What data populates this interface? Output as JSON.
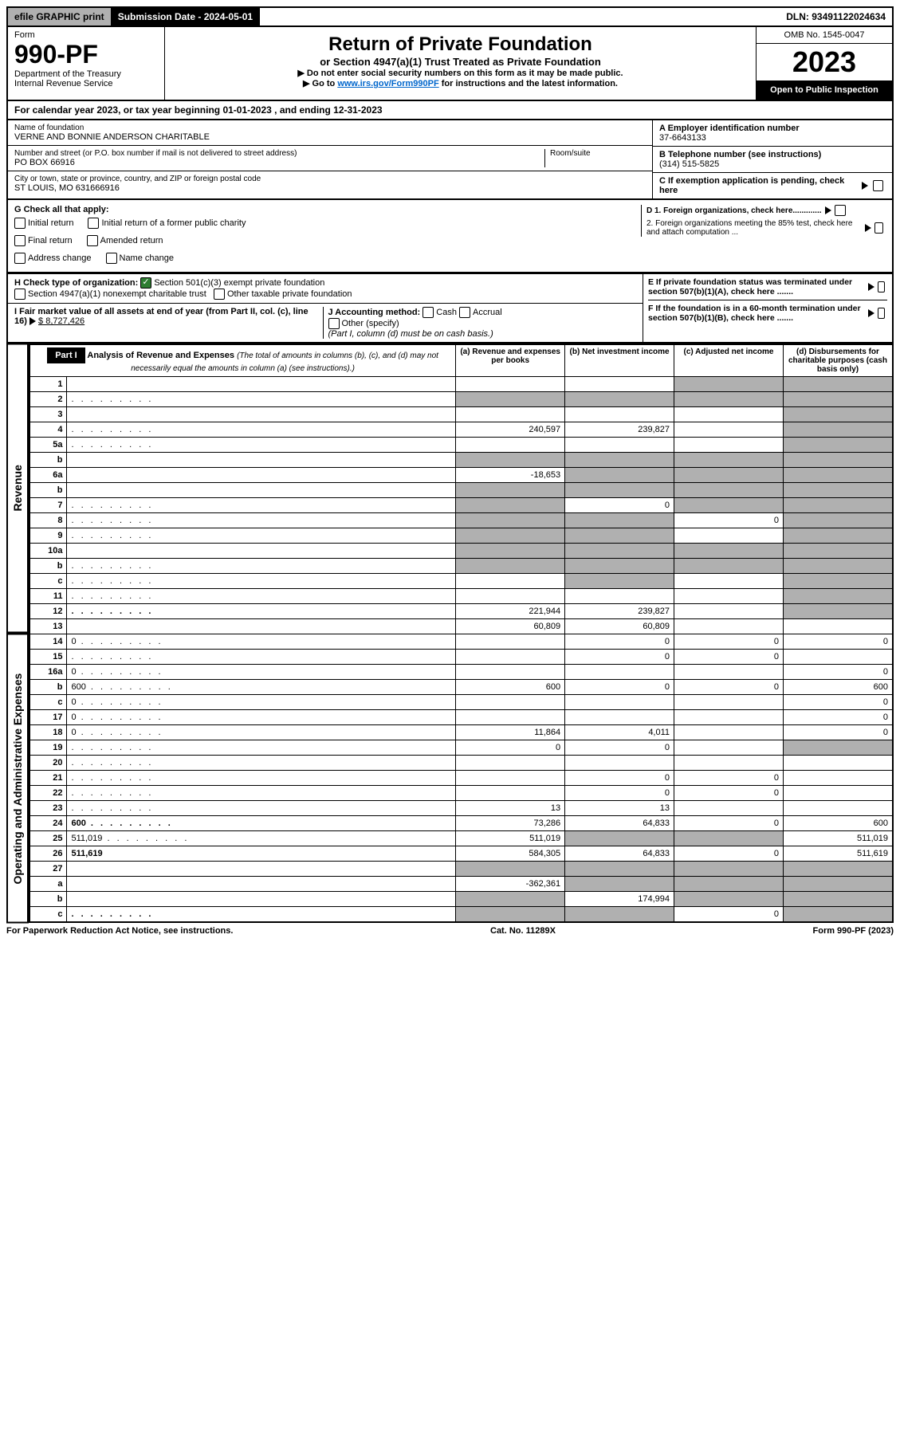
{
  "topbar": {
    "efile": "efile GRAPHIC print",
    "submission": "Submission Date - 2024-05-01",
    "dln": "DLN: 93491122024634"
  },
  "header": {
    "form_label": "Form",
    "form_number": "990-PF",
    "dept": "Department of the Treasury",
    "irs": "Internal Revenue Service",
    "title": "Return of Private Foundation",
    "subtitle": "or Section 4947(a)(1) Trust Treated as Private Foundation",
    "note1": "▶ Do not enter social security numbers on this form as it may be made public.",
    "note2_pre": "▶ Go to ",
    "note2_link": "www.irs.gov/Form990PF",
    "note2_post": " for instructions and the latest information.",
    "omb": "OMB No. 1545-0047",
    "year": "2023",
    "open": "Open to Public Inspection"
  },
  "calendar": "For calendar year 2023, or tax year beginning 01-01-2023           , and ending 12-31-2023",
  "foundation": {
    "name_label": "Name of foundation",
    "name": "VERNE AND BONNIE ANDERSON CHARITABLE",
    "addr_label": "Number and street (or P.O. box number if mail is not delivered to street address)",
    "room_label": "Room/suite",
    "addr": "PO BOX 66916",
    "city_label": "City or town, state or province, country, and ZIP or foreign postal code",
    "city": "ST LOUIS, MO  631666916",
    "ein_label": "A Employer identification number",
    "ein": "37-6643133",
    "phone_label": "B Telephone number (see instructions)",
    "phone": "(314) 515-5825",
    "pending": "C If exemption application is pending, check here"
  },
  "checks": {
    "g_label": "G Check all that apply:",
    "initial": "Initial return",
    "initial_former": "Initial return of a former public charity",
    "final": "Final return",
    "amended": "Amended return",
    "addr_change": "Address change",
    "name_change": "Name change",
    "h_label": "H Check type of organization:",
    "h_501c3": "Section 501(c)(3) exempt private foundation",
    "h_4947": "Section 4947(a)(1) nonexempt charitable trust",
    "h_other": "Other taxable private foundation",
    "i_label": "I Fair market value of all assets at end of year (from Part II, col. (c), line 16)",
    "i_value": "$ 8,727,426",
    "j_label": "J Accounting method:",
    "j_cash": "Cash",
    "j_accrual": "Accrual",
    "j_other": "Other (specify)",
    "j_note": "(Part I, column (d) must be on cash basis.)",
    "d1": "D 1. Foreign organizations, check here.............",
    "d2": "2. Foreign organizations meeting the 85% test, check here and attach computation ...",
    "e": "E If private foundation status was terminated under section 507(b)(1)(A), check here .......",
    "f": "F If the foundation is in a 60-month termination under section 507(b)(1)(B), check here ......."
  },
  "part1": {
    "label": "Part I",
    "title": "Analysis of Revenue and Expenses",
    "title_note": "(The total of amounts in columns (b), (c), and (d) may not necessarily equal the amounts in column (a) (see instructions).)",
    "col_a": "(a) Revenue and expenses per books",
    "col_b": "(b) Net investment income",
    "col_c": "(c) Adjusted net income",
    "col_d": "(d) Disbursements for charitable purposes (cash basis only)"
  },
  "side_labels": {
    "revenue": "Revenue",
    "expenses": "Operating and Administrative Expenses"
  },
  "rows": [
    {
      "n": "1",
      "d": "",
      "a": "",
      "b": "",
      "c": "",
      "shade_c": true,
      "shade_d": true
    },
    {
      "n": "2",
      "d": "",
      "dots": true,
      "a": "",
      "b": "",
      "c": "",
      "shade_a": true,
      "shade_b": true,
      "shade_c": true,
      "shade_d": true
    },
    {
      "n": "3",
      "d": "",
      "a": "",
      "b": "",
      "c": "",
      "shade_d": true
    },
    {
      "n": "4",
      "d": "",
      "dots": true,
      "a": "240,597",
      "b": "239,827",
      "c": "",
      "shade_d": true
    },
    {
      "n": "5a",
      "d": "",
      "dots": true,
      "a": "",
      "b": "",
      "c": "",
      "shade_d": true
    },
    {
      "n": "b",
      "d": "",
      "a": "",
      "b": "",
      "c": "",
      "shade_a": true,
      "shade_b": true,
      "shade_c": true,
      "shade_d": true
    },
    {
      "n": "6a",
      "d": "",
      "a": "-18,653",
      "b": "",
      "c": "",
      "shade_b": true,
      "shade_c": true,
      "shade_d": true
    },
    {
      "n": "b",
      "d": "",
      "a": "",
      "b": "",
      "c": "",
      "shade_a": true,
      "shade_b": true,
      "shade_c": true,
      "shade_d": true
    },
    {
      "n": "7",
      "d": "",
      "dots": true,
      "a": "",
      "b": "0",
      "c": "",
      "shade_a": true,
      "shade_c": true,
      "shade_d": true
    },
    {
      "n": "8",
      "d": "",
      "dots": true,
      "a": "",
      "b": "",
      "c": "0",
      "shade_a": true,
      "shade_b": true,
      "shade_d": true
    },
    {
      "n": "9",
      "d": "",
      "dots": true,
      "a": "",
      "b": "",
      "c": "",
      "shade_a": true,
      "shade_b": true,
      "shade_d": true
    },
    {
      "n": "10a",
      "d": "",
      "a": "",
      "b": "",
      "c": "",
      "shade_a": true,
      "shade_b": true,
      "shade_c": true,
      "shade_d": true
    },
    {
      "n": "b",
      "d": "",
      "dots": true,
      "a": "",
      "b": "",
      "c": "",
      "shade_a": true,
      "shade_b": true,
      "shade_c": true,
      "shade_d": true
    },
    {
      "n": "c",
      "d": "",
      "dots": true,
      "a": "",
      "b": "",
      "c": "",
      "shade_b": true,
      "shade_d": true
    },
    {
      "n": "11",
      "d": "",
      "dots": true,
      "a": "",
      "b": "",
      "c": "",
      "shade_d": true
    },
    {
      "n": "12",
      "d": "",
      "dots": true,
      "bold": true,
      "a": "221,944",
      "b": "239,827",
      "c": "",
      "shade_d": true
    },
    {
      "n": "13",
      "d": "",
      "a": "60,809",
      "b": "60,809",
      "c": ""
    },
    {
      "n": "14",
      "d": "0",
      "dots": true,
      "a": "",
      "b": "0",
      "c": "0"
    },
    {
      "n": "15",
      "d": "",
      "dots": true,
      "a": "",
      "b": "0",
      "c": "0"
    },
    {
      "n": "16a",
      "d": "0",
      "dots": true,
      "a": "",
      "b": "",
      "c": ""
    },
    {
      "n": "b",
      "d": "600",
      "dots": true,
      "a": "600",
      "b": "0",
      "c": "0"
    },
    {
      "n": "c",
      "d": "0",
      "dots": true,
      "a": "",
      "b": "",
      "c": ""
    },
    {
      "n": "17",
      "d": "0",
      "dots": true,
      "a": "",
      "b": "",
      "c": ""
    },
    {
      "n": "18",
      "d": "0",
      "dots": true,
      "a": "11,864",
      "b": "4,011",
      "c": ""
    },
    {
      "n": "19",
      "d": "",
      "dots": true,
      "a": "0",
      "b": "0",
      "c": "",
      "shade_d": true
    },
    {
      "n": "20",
      "d": "",
      "dots": true,
      "a": "",
      "b": "",
      "c": ""
    },
    {
      "n": "21",
      "d": "",
      "dots": true,
      "a": "",
      "b": "0",
      "c": "0"
    },
    {
      "n": "22",
      "d": "",
      "dots": true,
      "a": "",
      "b": "0",
      "c": "0"
    },
    {
      "n": "23",
      "d": "",
      "dots": true,
      "a": "13",
      "b": "13",
      "c": ""
    },
    {
      "n": "24",
      "d": "600",
      "dots": true,
      "bold": true,
      "a": "73,286",
      "b": "64,833",
      "c": "0"
    },
    {
      "n": "25",
      "d": "511,019",
      "dots": true,
      "a": "511,019",
      "b": "",
      "c": "",
      "shade_b": true,
      "shade_c": true
    },
    {
      "n": "26",
      "d": "511,619",
      "bold": true,
      "a": "584,305",
      "b": "64,833",
      "c": "0"
    },
    {
      "n": "27",
      "d": "",
      "a": "",
      "b": "",
      "c": "",
      "shade_a": true,
      "shade_b": true,
      "shade_c": true,
      "shade_d": true
    },
    {
      "n": "a",
      "d": "",
      "bold": true,
      "a": "-362,361",
      "b": "",
      "c": "",
      "shade_b": true,
      "shade_c": true,
      "shade_d": true
    },
    {
      "n": "b",
      "d": "",
      "bold": true,
      "a": "",
      "b": "174,994",
      "c": "",
      "shade_a": true,
      "shade_c": true,
      "shade_d": true
    },
    {
      "n": "c",
      "d": "",
      "dots": true,
      "bold": true,
      "a": "",
      "b": "",
      "c": "0",
      "shade_a": true,
      "shade_b": true,
      "shade_d": true
    }
  ],
  "footer": {
    "left": "For Paperwork Reduction Act Notice, see instructions.",
    "mid": "Cat. No. 11289X",
    "right": "Form 990-PF (2023)"
  }
}
